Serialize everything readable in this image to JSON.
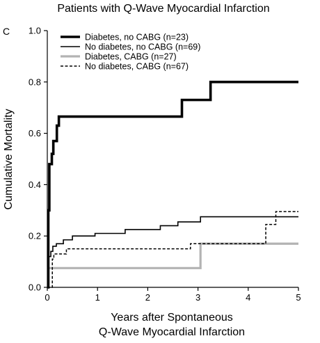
{
  "chart_data": {
    "type": "line",
    "step": true,
    "title": "Patients with Q-Wave Myocardial Infarction",
    "panel_label": "C",
    "xlabel_lines": [
      "Years after Spontaneous",
      "Q-Wave Myocardial Infarction"
    ],
    "ylabel": "Cumulative Mortality",
    "xlim": [
      0,
      5
    ],
    "ylim": [
      0,
      1.0
    ],
    "x_ticks": [
      "0",
      "1",
      "2",
      "3",
      "4",
      "5"
    ],
    "y_ticks": [
      "0.0",
      "0.2",
      "0.4",
      "0.6",
      "0.8",
      "1.0"
    ],
    "grid": false,
    "legend_position": "top-left",
    "series": [
      {
        "name": "Diabetes, no CABG (n=23)",
        "color": "#000000",
        "style": "thick",
        "points": [
          [
            0,
            0
          ],
          [
            0.02,
            0
          ],
          [
            0.02,
            0.3
          ],
          [
            0.04,
            0.3
          ],
          [
            0.04,
            0.48
          ],
          [
            0.09,
            0.48
          ],
          [
            0.09,
            0.52
          ],
          [
            0.12,
            0.52
          ],
          [
            0.12,
            0.57
          ],
          [
            0.19,
            0.57
          ],
          [
            0.19,
            0.63
          ],
          [
            0.23,
            0.63
          ],
          [
            0.23,
            0.665
          ],
          [
            2.68,
            0.665
          ],
          [
            2.68,
            0.73
          ],
          [
            3.25,
            0.73
          ],
          [
            3.25,
            0.8
          ],
          [
            5,
            0.8
          ]
        ]
      },
      {
        "name": "No diabetes, no CABG (n=69)",
        "color": "#000000",
        "style": "thin",
        "points": [
          [
            0,
            0
          ],
          [
            0.02,
            0
          ],
          [
            0.02,
            0.12
          ],
          [
            0.07,
            0.12
          ],
          [
            0.07,
            0.14
          ],
          [
            0.11,
            0.14
          ],
          [
            0.11,
            0.16
          ],
          [
            0.18,
            0.16
          ],
          [
            0.18,
            0.17
          ],
          [
            0.32,
            0.17
          ],
          [
            0.32,
            0.185
          ],
          [
            0.5,
            0.185
          ],
          [
            0.5,
            0.2
          ],
          [
            0.95,
            0.2
          ],
          [
            0.95,
            0.21
          ],
          [
            1.55,
            0.21
          ],
          [
            1.55,
            0.225
          ],
          [
            2.25,
            0.225
          ],
          [
            2.25,
            0.24
          ],
          [
            2.6,
            0.24
          ],
          [
            2.6,
            0.255
          ],
          [
            3.05,
            0.255
          ],
          [
            3.05,
            0.275
          ],
          [
            5,
            0.275
          ]
        ]
      },
      {
        "name": "Diabetes, CABG (n=27)",
        "color": "#b3b3b3",
        "style": "gray",
        "points": [
          [
            0,
            0
          ],
          [
            0.02,
            0
          ],
          [
            0.02,
            0.075
          ],
          [
            3.05,
            0.075
          ],
          [
            3.05,
            0.17
          ],
          [
            5,
            0.17
          ]
        ]
      },
      {
        "name": "No diabetes, CABG (n=67)",
        "color": "#000000",
        "style": "dashed",
        "points": [
          [
            0,
            0
          ],
          [
            0.1,
            0
          ],
          [
            0.1,
            0.11
          ],
          [
            0.13,
            0.11
          ],
          [
            0.13,
            0.13
          ],
          [
            0.38,
            0.13
          ],
          [
            0.38,
            0.15
          ],
          [
            2.85,
            0.15
          ],
          [
            2.85,
            0.17
          ],
          [
            4.35,
            0.17
          ],
          [
            4.35,
            0.245
          ],
          [
            4.55,
            0.245
          ],
          [
            4.55,
            0.295
          ],
          [
            5,
            0.295
          ]
        ]
      }
    ]
  }
}
